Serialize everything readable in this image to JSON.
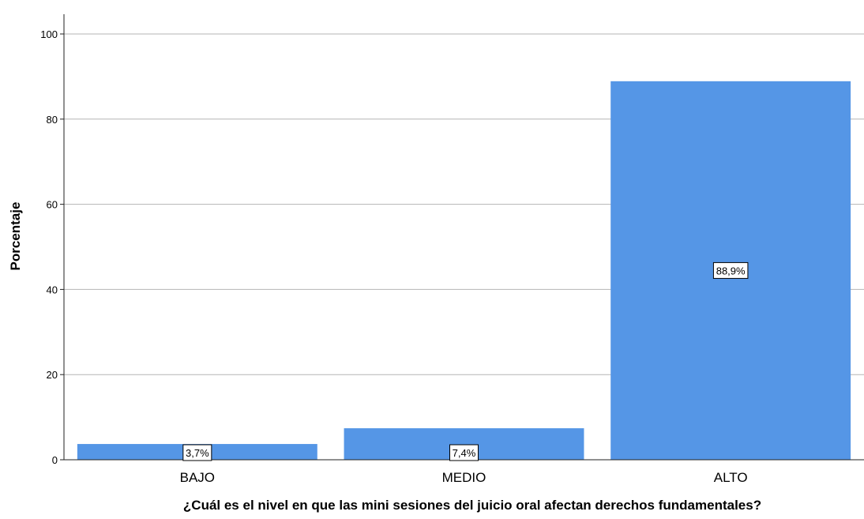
{
  "chart_data": {
    "type": "bar",
    "categories": [
      "BAJO",
      "MEDIO",
      "ALTO"
    ],
    "values": [
      3.7,
      7.4,
      88.9
    ],
    "data_labels": [
      "3,7%",
      "7,4%",
      "88,9%"
    ],
    "title": "",
    "xlabel": "¿Cuál es el nivel en que las mini sesiones del juicio oral afectan derechos fundamentales?",
    "ylabel": "Porcentaje",
    "ylim": [
      0,
      100
    ],
    "yticks": [
      0,
      20,
      40,
      60,
      80,
      100
    ],
    "grid": true,
    "legend": "none",
    "bar_color": "#5596e6"
  }
}
